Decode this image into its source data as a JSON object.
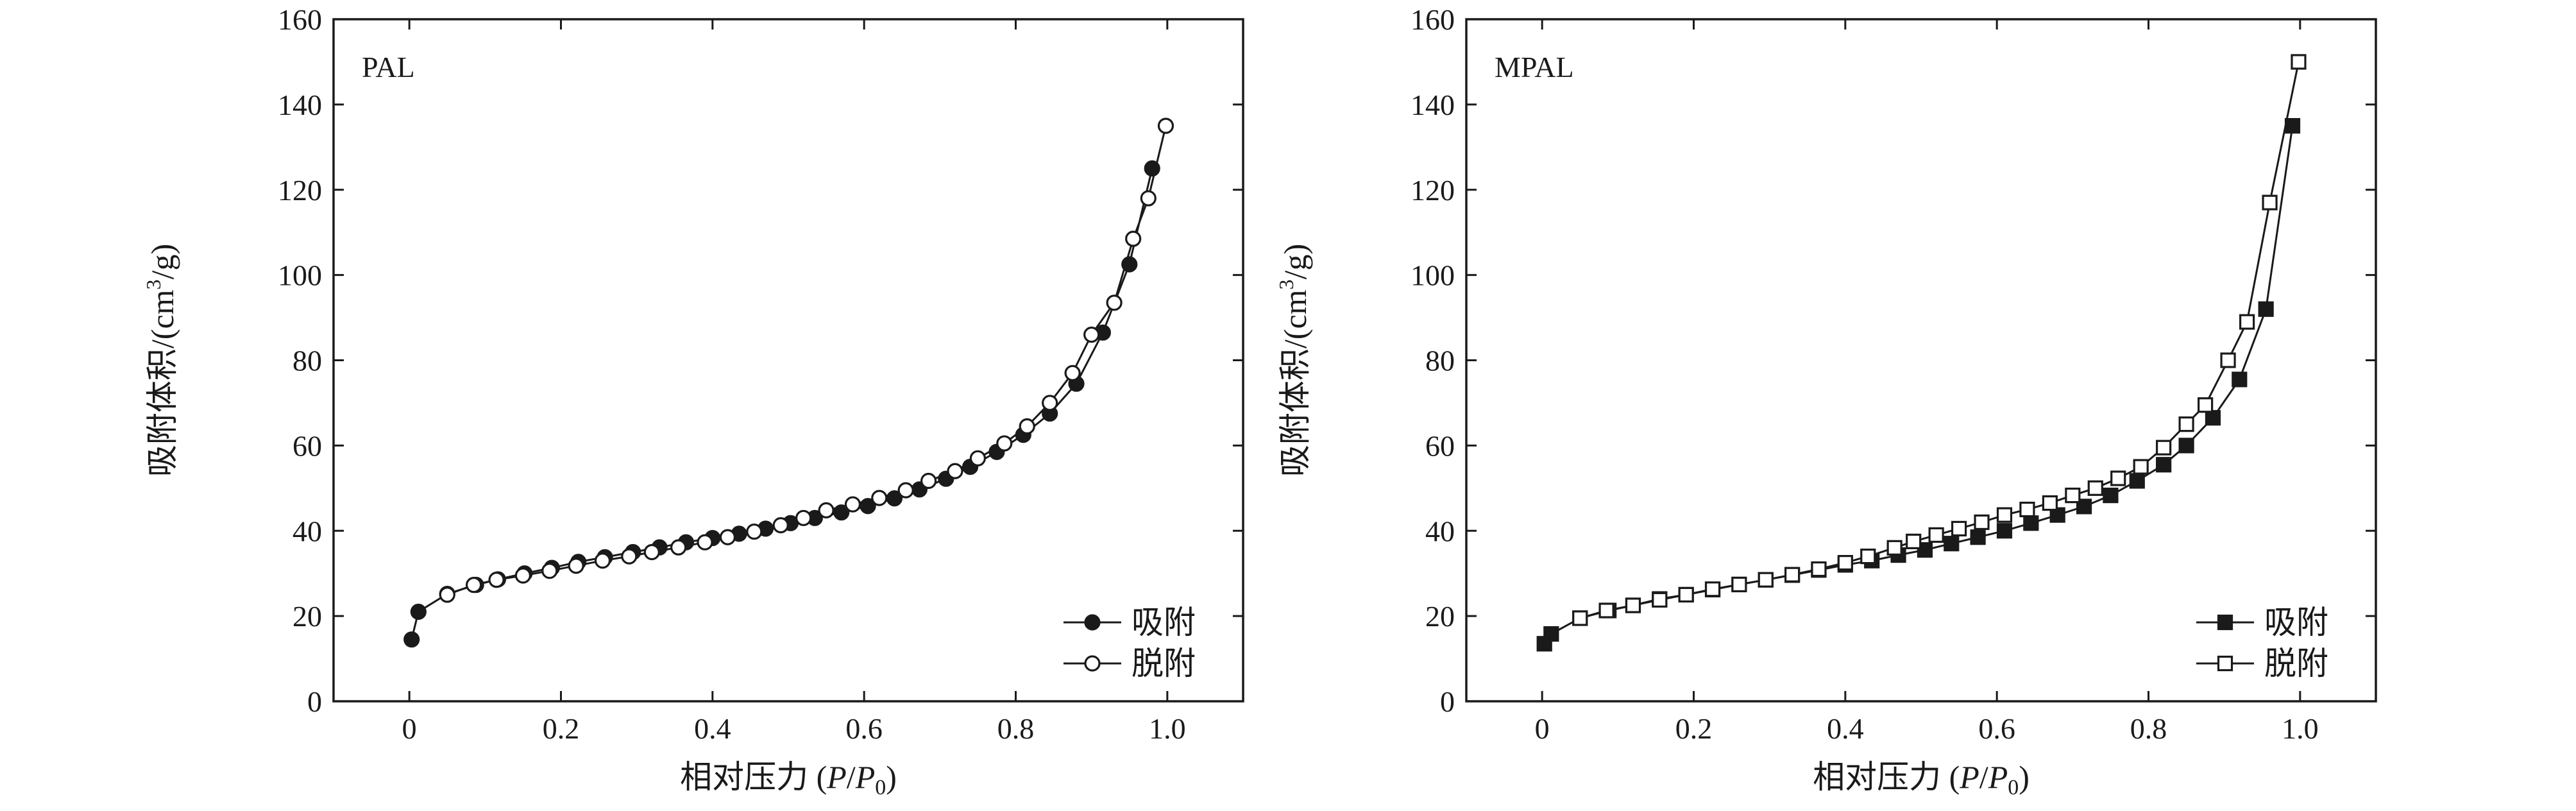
{
  "chart_data": [
    {
      "type": "line",
      "panel_label": "PAL",
      "xlabel_prefix": "相对压力 (",
      "xlabel_P": "P",
      "xlabel_slash": "/",
      "xlabel_P0_base": "P",
      "xlabel_P0_sub": "0",
      "xlabel_suffix": ")",
      "ylabel_prefix": "吸附体积/(cm",
      "ylabel_sup": "3",
      "ylabel_suffix": "/g)",
      "xlim": [
        -0.1,
        1.1
      ],
      "ylim": [
        0,
        160
      ],
      "xticks": [
        "0",
        "0.2",
        "0.4",
        "0.6",
        "0.8",
        "1.0"
      ],
      "xtick_values": [
        0,
        0.2,
        0.4,
        0.6,
        0.8,
        1.0
      ],
      "yticks": [
        "0",
        "20",
        "40",
        "60",
        "80",
        "100",
        "120",
        "140",
        "160"
      ],
      "ytick_values": [
        0,
        20,
        40,
        60,
        80,
        100,
        120,
        140,
        160
      ],
      "legend_position": "bottom-right",
      "series": [
        {
          "name": "吸附",
          "marker": "filled-circle",
          "x": [
            0.003,
            0.012,
            0.05,
            0.088,
            0.117,
            0.152,
            0.188,
            0.223,
            0.258,
            0.295,
            0.33,
            0.365,
            0.4,
            0.435,
            0.47,
            0.503,
            0.535,
            0.57,
            0.605,
            0.64,
            0.673,
            0.708,
            0.74,
            0.775,
            0.81,
            0.845,
            0.88,
            0.915,
            0.95,
            0.98
          ],
          "y": [
            14.5,
            21,
            25.2,
            27.3,
            28.6,
            30,
            31.3,
            32.7,
            33.8,
            35,
            36.1,
            37.3,
            38.3,
            39.3,
            40.5,
            41.8,
            43,
            44.3,
            45.8,
            47.6,
            49.7,
            52.2,
            55,
            58.5,
            62.5,
            67.5,
            74.5,
            86.5,
            102.5,
            125
          ]
        },
        {
          "name": "脱附",
          "marker": "open-circle",
          "x": [
            0.998,
            0.975,
            0.955,
            0.93,
            0.9,
            0.875,
            0.845,
            0.815,
            0.785,
            0.75,
            0.72,
            0.685,
            0.655,
            0.62,
            0.585,
            0.55,
            0.52,
            0.49,
            0.455,
            0.42,
            0.39,
            0.355,
            0.32,
            0.29,
            0.255,
            0.22,
            0.185,
            0.15,
            0.115,
            0.085,
            0.05
          ],
          "y": [
            135,
            118,
            108.5,
            93.5,
            86,
            77,
            70,
            64.5,
            60.5,
            57,
            54,
            51.7,
            49.5,
            47.7,
            46.2,
            44.8,
            43,
            41.3,
            39.8,
            38.5,
            37.3,
            36.1,
            35,
            34,
            33,
            31.8,
            30.6,
            29.5,
            28.5,
            27.3,
            25
          ]
        }
      ]
    },
    {
      "type": "line",
      "panel_label": "MPAL",
      "xlabel_prefix": "相对压力 (",
      "xlabel_P": "P",
      "xlabel_slash": "/",
      "xlabel_P0_base": "P",
      "xlabel_P0_sub": "0",
      "xlabel_suffix": ")",
      "ylabel_prefix": "吸附体积/(cm",
      "ylabel_sup": "3",
      "ylabel_suffix": "/g)",
      "xlim": [
        -0.1,
        1.1
      ],
      "ylim": [
        0,
        160
      ],
      "xticks": [
        "0",
        "0.2",
        "0.4",
        "0.6",
        "0.8",
        "1.0"
      ],
      "xtick_values": [
        0,
        0.2,
        0.4,
        0.6,
        0.8,
        1.0
      ],
      "yticks": [
        "0",
        "20",
        "40",
        "60",
        "80",
        "100",
        "120",
        "140",
        "160"
      ],
      "ytick_values": [
        0,
        20,
        40,
        60,
        80,
        100,
        120,
        140,
        160
      ],
      "legend_position": "bottom-right",
      "series": [
        {
          "name": "吸附",
          "marker": "filled-square",
          "x": [
            0.003,
            0.012,
            0.05,
            0.088,
            0.12,
            0.155,
            0.19,
            0.225,
            0.26,
            0.295,
            0.33,
            0.365,
            0.4,
            0.435,
            0.47,
            0.505,
            0.54,
            0.575,
            0.61,
            0.645,
            0.68,
            0.715,
            0.75,
            0.785,
            0.82,
            0.85,
            0.885,
            0.92,
            0.955,
            0.99
          ],
          "y": [
            13.5,
            15.8,
            19.5,
            21.3,
            22.5,
            24,
            25,
            26.2,
            27.4,
            28.5,
            29.6,
            30.8,
            32,
            33,
            34.3,
            35.5,
            37,
            38.5,
            40,
            41.8,
            43.7,
            45.7,
            48.3,
            51.7,
            55.5,
            60,
            66.5,
            75.5,
            92,
            135
          ]
        },
        {
          "name": "脱附",
          "marker": "open-square",
          "x": [
            0.998,
            0.96,
            0.93,
            0.905,
            0.875,
            0.85,
            0.82,
            0.79,
            0.76,
            0.73,
            0.7,
            0.67,
            0.64,
            0.61,
            0.58,
            0.55,
            0.52,
            0.49,
            0.465,
            0.43,
            0.4,
            0.365,
            0.33,
            0.295,
            0.26,
            0.225,
            0.19,
            0.155,
            0.12,
            0.085,
            0.05
          ],
          "y": [
            150,
            117,
            89,
            80,
            69.5,
            65,
            59.5,
            55,
            52.3,
            50,
            48.3,
            46.5,
            45,
            43.7,
            42,
            40.5,
            39,
            37.5,
            36,
            34,
            32.5,
            31,
            29.7,
            28.5,
            27.4,
            26.3,
            25,
            23.8,
            22.5,
            21.3,
            19.5
          ]
        }
      ]
    }
  ]
}
